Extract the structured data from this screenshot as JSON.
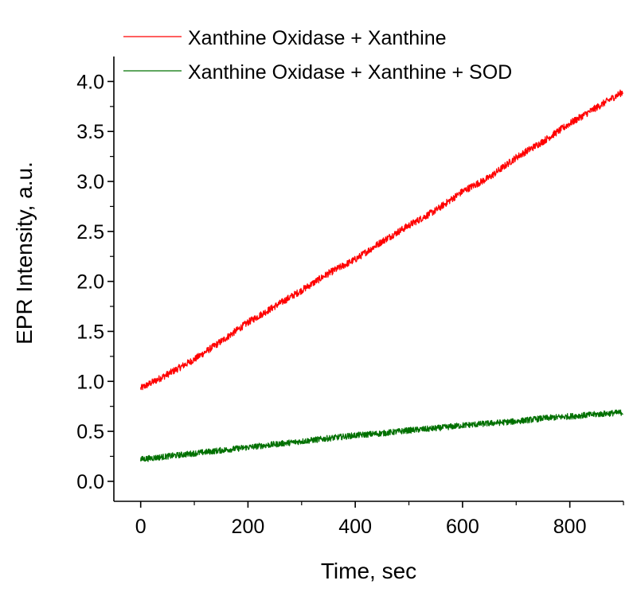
{
  "chart_data": {
    "type": "line",
    "xlabel": "Time, sec",
    "ylabel": "EPR Intensity, a.u.",
    "xlim": [
      -50,
      900
    ],
    "ylim": [
      -0.2,
      4.25
    ],
    "x_ticks": [
      0,
      200,
      400,
      600,
      800
    ],
    "x_tick_labels": [
      "0",
      "200",
      "400",
      "600",
      "800"
    ],
    "y_ticks": [
      0.0,
      0.5,
      1.0,
      1.5,
      2.0,
      2.5,
      3.0,
      3.5,
      4.0
    ],
    "y_tick_labels": [
      "0.0",
      "0.5",
      "1.0",
      "1.5",
      "2.0",
      "2.5",
      "3.0",
      "3.5",
      "4.0"
    ],
    "grid": false,
    "legend_position": "top",
    "series": [
      {
        "name": "Xanthine Oxidase + Xanthine",
        "color": "#ff0000",
        "x": [
          0,
          50,
          100,
          150,
          200,
          250,
          300,
          350,
          400,
          450,
          500,
          550,
          600,
          650,
          700,
          750,
          800,
          850,
          900
        ],
        "y": [
          0.93,
          1.07,
          1.22,
          1.4,
          1.59,
          1.75,
          1.91,
          2.08,
          2.22,
          2.4,
          2.56,
          2.71,
          2.9,
          3.04,
          3.24,
          3.4,
          3.58,
          3.74,
          3.9
        ]
      },
      {
        "name": "Xanthine Oxidase + Xanthine + SOD",
        "color": "#007000",
        "x": [
          0,
          50,
          100,
          150,
          200,
          250,
          300,
          350,
          400,
          450,
          500,
          550,
          600,
          650,
          700,
          750,
          800,
          850,
          900
        ],
        "y": [
          0.22,
          0.25,
          0.28,
          0.31,
          0.34,
          0.37,
          0.4,
          0.43,
          0.46,
          0.48,
          0.51,
          0.53,
          0.56,
          0.58,
          0.6,
          0.63,
          0.65,
          0.67,
          0.69
        ]
      }
    ]
  }
}
